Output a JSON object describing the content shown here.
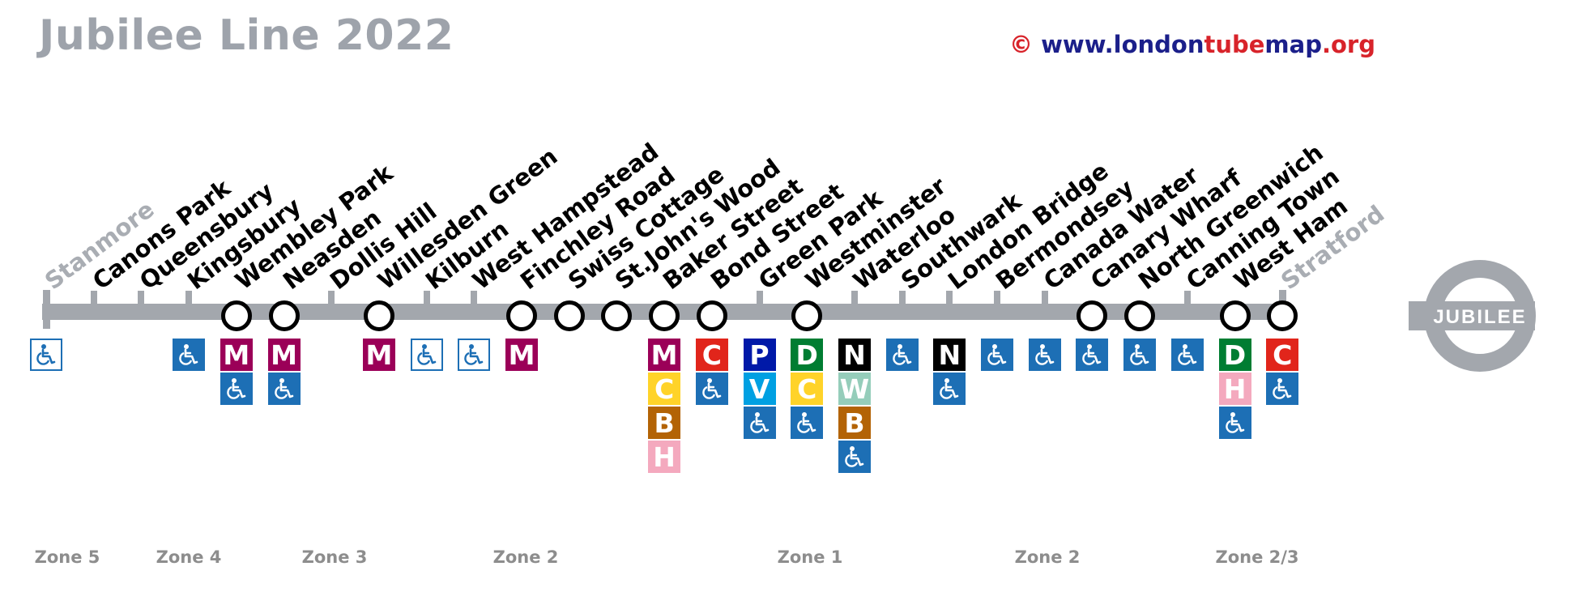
{
  "title": "Jubilee Line 2022",
  "credit": {
    "symbol": "©",
    "prefix": "www.london",
    "tube": "tube",
    "map": "map",
    "suffix": ".org"
  },
  "roundel": {
    "label": "JUBILEE"
  },
  "colors": {
    "line": "#a3a7ad",
    "access": "#1d6fb5",
    "title": "#9ea3ab"
  },
  "zones": [
    {
      "label": "Zone 5",
      "color": "#e2dcee"
    },
    {
      "label": "Zone 4",
      "color": "#d8f0e4"
    },
    {
      "label": "Zone 3",
      "color": "#d1daf2"
    },
    {
      "label": "Zone 2",
      "color": "#fbdcc4"
    },
    {
      "label": "Zone 1",
      "color": "#c2dca5"
    },
    {
      "label": "Zone 2",
      "color": "#fbdcc4"
    },
    {
      "label": "Zone 2/3",
      "color": "#e3cdcd"
    }
  ],
  "stations": [
    {
      "name": "Stanmore",
      "dim": true,
      "interchange": false,
      "badges": [
        "access-white"
      ]
    },
    {
      "name": "Canons Park",
      "dim": false,
      "interchange": false,
      "badges": []
    },
    {
      "name": "Queensbury",
      "dim": false,
      "interchange": false,
      "badges": []
    },
    {
      "name": "Kingsbury",
      "dim": false,
      "interchange": false,
      "badges": [
        "access"
      ]
    },
    {
      "name": "Wembley Park",
      "dim": false,
      "interchange": true,
      "badges": [
        "M",
        "access"
      ]
    },
    {
      "name": "Neasden",
      "dim": false,
      "interchange": true,
      "badges": [
        "M",
        "access"
      ]
    },
    {
      "name": "Dollis Hill",
      "dim": false,
      "interchange": false,
      "badges": []
    },
    {
      "name": "Willesden Green",
      "dim": false,
      "interchange": true,
      "badges": [
        "M"
      ]
    },
    {
      "name": "Kilburn",
      "dim": false,
      "interchange": false,
      "badges": [
        "access-white"
      ]
    },
    {
      "name": "West Hampstead",
      "dim": false,
      "interchange": false,
      "badges": [
        "access-white"
      ]
    },
    {
      "name": "Finchley Road",
      "dim": false,
      "interchange": true,
      "badges": [
        "M"
      ]
    },
    {
      "name": "Swiss Cottage",
      "dim": false,
      "interchange": true,
      "badges": []
    },
    {
      "name": "St.John's Wood",
      "dim": false,
      "interchange": true,
      "badges": []
    },
    {
      "name": "Baker Street",
      "dim": false,
      "interchange": true,
      "badges": [
        "M",
        "C",
        "B",
        "H"
      ]
    },
    {
      "name": "Bond Street",
      "dim": false,
      "interchange": true,
      "badges": [
        "C",
        "access"
      ]
    },
    {
      "name": "Green Park",
      "dim": false,
      "interchange": false,
      "badges": [
        "P",
        "V",
        "access"
      ]
    },
    {
      "name": "Westminster",
      "dim": false,
      "interchange": true,
      "badges": [
        "D",
        "C",
        "access"
      ]
    },
    {
      "name": "Waterloo",
      "dim": false,
      "interchange": false,
      "badges": [
        "N",
        "W",
        "B",
        "access"
      ]
    },
    {
      "name": "Southwark",
      "dim": false,
      "interchange": false,
      "badges": [
        "access"
      ]
    },
    {
      "name": "London Bridge",
      "dim": false,
      "interchange": false,
      "badges": [
        "N",
        "access"
      ]
    },
    {
      "name": "Bermondsey",
      "dim": false,
      "interchange": false,
      "badges": [
        "access"
      ]
    },
    {
      "name": "Canada Water",
      "dim": false,
      "interchange": false,
      "badges": [
        "access"
      ]
    },
    {
      "name": "Canary Wharf",
      "dim": false,
      "interchange": true,
      "badges": [
        "access"
      ]
    },
    {
      "name": "North Greenwich",
      "dim": false,
      "interchange": true,
      "badges": [
        "access"
      ]
    },
    {
      "name": "Canning Town",
      "dim": false,
      "interchange": false,
      "badges": [
        "access"
      ]
    },
    {
      "name": "West Ham",
      "dim": false,
      "interchange": true,
      "badges": [
        "D",
        "H",
        "access"
      ]
    },
    {
      "name": "Stratford",
      "dim": true,
      "interchange": true,
      "badges": [
        "C",
        "access"
      ]
    }
  ],
  "line_badges": {
    "M": {
      "letter": "M",
      "bg": "#9b0058",
      "fg": "#ffffff"
    },
    "C": {
      "letter": "C",
      "bg": "#e1251b",
      "fg": "#ffffff"
    },
    "B": {
      "letter": "B",
      "bg": "#b36305",
      "fg": "#ffffff"
    },
    "H": {
      "letter": "H",
      "bg": "#f4a9be",
      "fg": "#ffffff"
    },
    "P": {
      "letter": "P",
      "bg": "#0019a8",
      "fg": "#ffffff"
    },
    "V": {
      "letter": "V",
      "bg": "#00a0e2",
      "fg": "#ffffff"
    },
    "D": {
      "letter": "D",
      "bg": "#007d32",
      "fg": "#ffffff"
    },
    "N": {
      "letter": "N",
      "bg": "#000000",
      "fg": "#ffffff"
    },
    "W": {
      "letter": "W",
      "bg": "#95cdba",
      "fg": "#ffffff"
    },
    "Cc": {
      "letter": "C",
      "bg": "#ffd329",
      "fg": "#ffffff"
    }
  },
  "icons": {
    "access": "wheelchair-access-icon",
    "roundel": "roundel-icon"
  }
}
